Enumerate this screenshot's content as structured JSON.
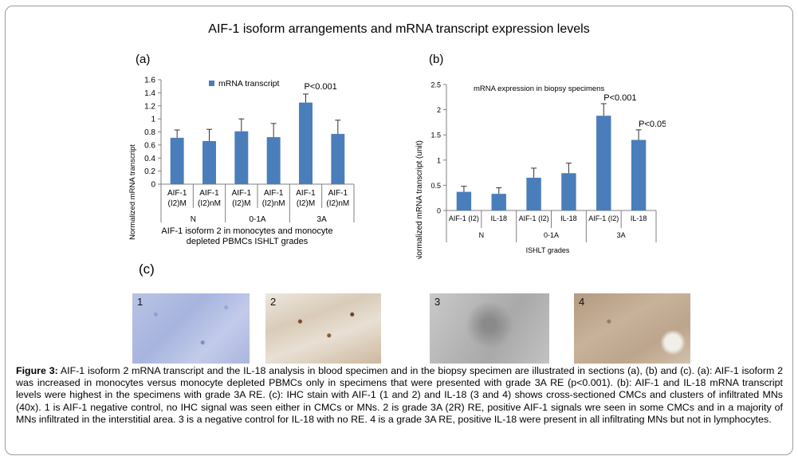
{
  "figure_title": "AIF-1 isoform arrangements and mRNA transcript expression levels",
  "panel_c_label": "(c)",
  "micrographs": [
    {
      "label": "1",
      "stain": "blue-negative"
    },
    {
      "label": "2",
      "stain": "brown-positive"
    },
    {
      "label": "3",
      "stain": "gray-negative"
    },
    {
      "label": "4",
      "stain": "tan-positive"
    }
  ],
  "caption": {
    "lead": "Figure 3:",
    "text": " AIF-1 isoform 2 mRNA transcript and the IL-18 analysis in blood specimen and in the biopsy specimen are illustrated in sections (a), (b) and (c). (a): AIF-1 isoform 2 was increased in monocytes versus monocyte depleted PBMCs only in specimens that were presented with grade 3A RE (p<0.001). (b): AIF-1 and IL-18 mRNA transcript levels were highest in the specimens with grade 3A RE. (c): IHC stain with AIF-1 (1 and 2) and IL-18 (3 and 4) shows cross-sectioned CMCs and clusters of infiltrated MNs (40x). 1 is AIF-1 negative control, no IHC signal was seen either in CMCs or MNs. 2 is grade 3A (2R) RE, positive AIF-1 signals wre seen in some CMCs and in a majority of MNs infiltrated in the interstitial area. 3 is a negative control for IL-18 with no RE. 4 is a grade 3A RE, positive IL-18 were present in all infiltrating MNs but not in lymphocytes."
  },
  "chart_data": [
    {
      "type": "bar",
      "panel_label": "(a)",
      "title": "",
      "ylabel": "Normalized mRNA transcript",
      "xlabel": "AIF-1 isoform 2 in monocytes and monocyte depleted PBMCs ISHLT grades",
      "ylim": [
        0,
        1.6
      ],
      "yticks": [
        "0",
        "0.2",
        "0.4",
        "0.6",
        "0.8",
        "1",
        "1.2",
        "1.4",
        "1.6"
      ],
      "categories": [
        "AIF-1 (I2)M",
        "AIF-1 (I2)nM",
        "AIF-1 (I2)M",
        "AIF-1 (I2)nM",
        "AIF-1 (I2)M",
        "AIF-1 (I2)nM"
      ],
      "groups": [
        {
          "label": "N",
          "span": 2
        },
        {
          "label": "0-1A",
          "span": 2
        },
        {
          "label": "3A",
          "span": 2
        }
      ],
      "series": [
        {
          "name": "mRNA transcript",
          "values": [
            0.71,
            0.66,
            0.81,
            0.72,
            1.25,
            0.77
          ],
          "errors": [
            0.12,
            0.18,
            0.19,
            0.21,
            0.13,
            0.21
          ]
        }
      ],
      "annotations": [
        {
          "category_index": 4,
          "text": "P<0.001"
        }
      ],
      "legend": "top",
      "color": "#4a7ebb"
    },
    {
      "type": "bar",
      "panel_label": "(b)",
      "title": "mRNA expression in biopsy specimens",
      "ylabel": "Normalized mRNA transcript (unit)",
      "xlabel": "ISHLT grades",
      "ylim": [
        0,
        2.5
      ],
      "yticks": [
        "0",
        "0.5",
        "1",
        "1.5",
        "2",
        "2.5"
      ],
      "categories": [
        "AIF-1 (I2)",
        "IL-18",
        "AIF-1 (I2)",
        "IL-18",
        "AIF-1 (I2)",
        "IL-18"
      ],
      "groups": [
        {
          "label": "N",
          "span": 2
        },
        {
          "label": "0-1A",
          "span": 2
        },
        {
          "label": "3A",
          "span": 2
        }
      ],
      "series": [
        {
          "values": [
            0.37,
            0.33,
            0.65,
            0.74,
            1.88,
            1.4
          ],
          "errors": [
            0.11,
            0.12,
            0.19,
            0.2,
            0.24,
            0.2
          ]
        }
      ],
      "annotations": [
        {
          "category_index": 4,
          "text": "P<0.001"
        },
        {
          "category_index": 5,
          "text": "P<0.05"
        }
      ],
      "color": "#4a7ebb"
    }
  ]
}
